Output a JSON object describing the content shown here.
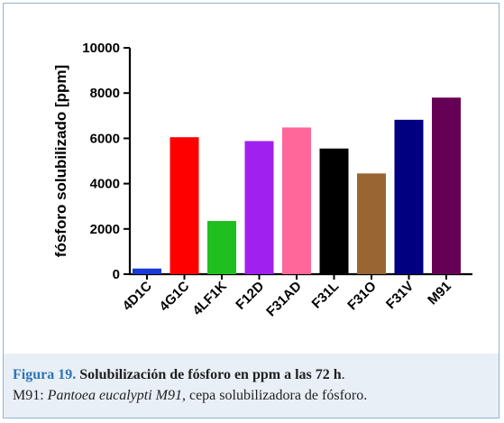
{
  "chart_data": {
    "type": "bar",
    "categories": [
      "4D1C",
      "4G1C",
      "4LF1K",
      "F12D",
      "F31AD",
      "F31L",
      "F31O",
      "F31V",
      "M91"
    ],
    "values": [
      250,
      6050,
      2350,
      5880,
      6480,
      5550,
      4450,
      6820,
      7800
    ],
    "colors": [
      "#1a3ad6",
      "#ff0000",
      "#1fbf1f",
      "#a020f0",
      "#ff6699",
      "#000000",
      "#996633",
      "#000080",
      "#660055"
    ],
    "ylabel": "fósforo solubilizado [ppm]",
    "ylim": [
      0,
      10000
    ],
    "yticks": [
      0,
      2000,
      4000,
      6000,
      8000,
      10000
    ],
    "grid": false
  },
  "caption": {
    "label": "Figura 19.",
    "title": "Solubilización de fósforo en ppm a las 72 h",
    "period": ".",
    "line2_prefix": "M91: ",
    "line2_species": "Pantoea eucalypti M91",
    "line2_suffix": ", cepa solubilizadora de fósforo."
  }
}
